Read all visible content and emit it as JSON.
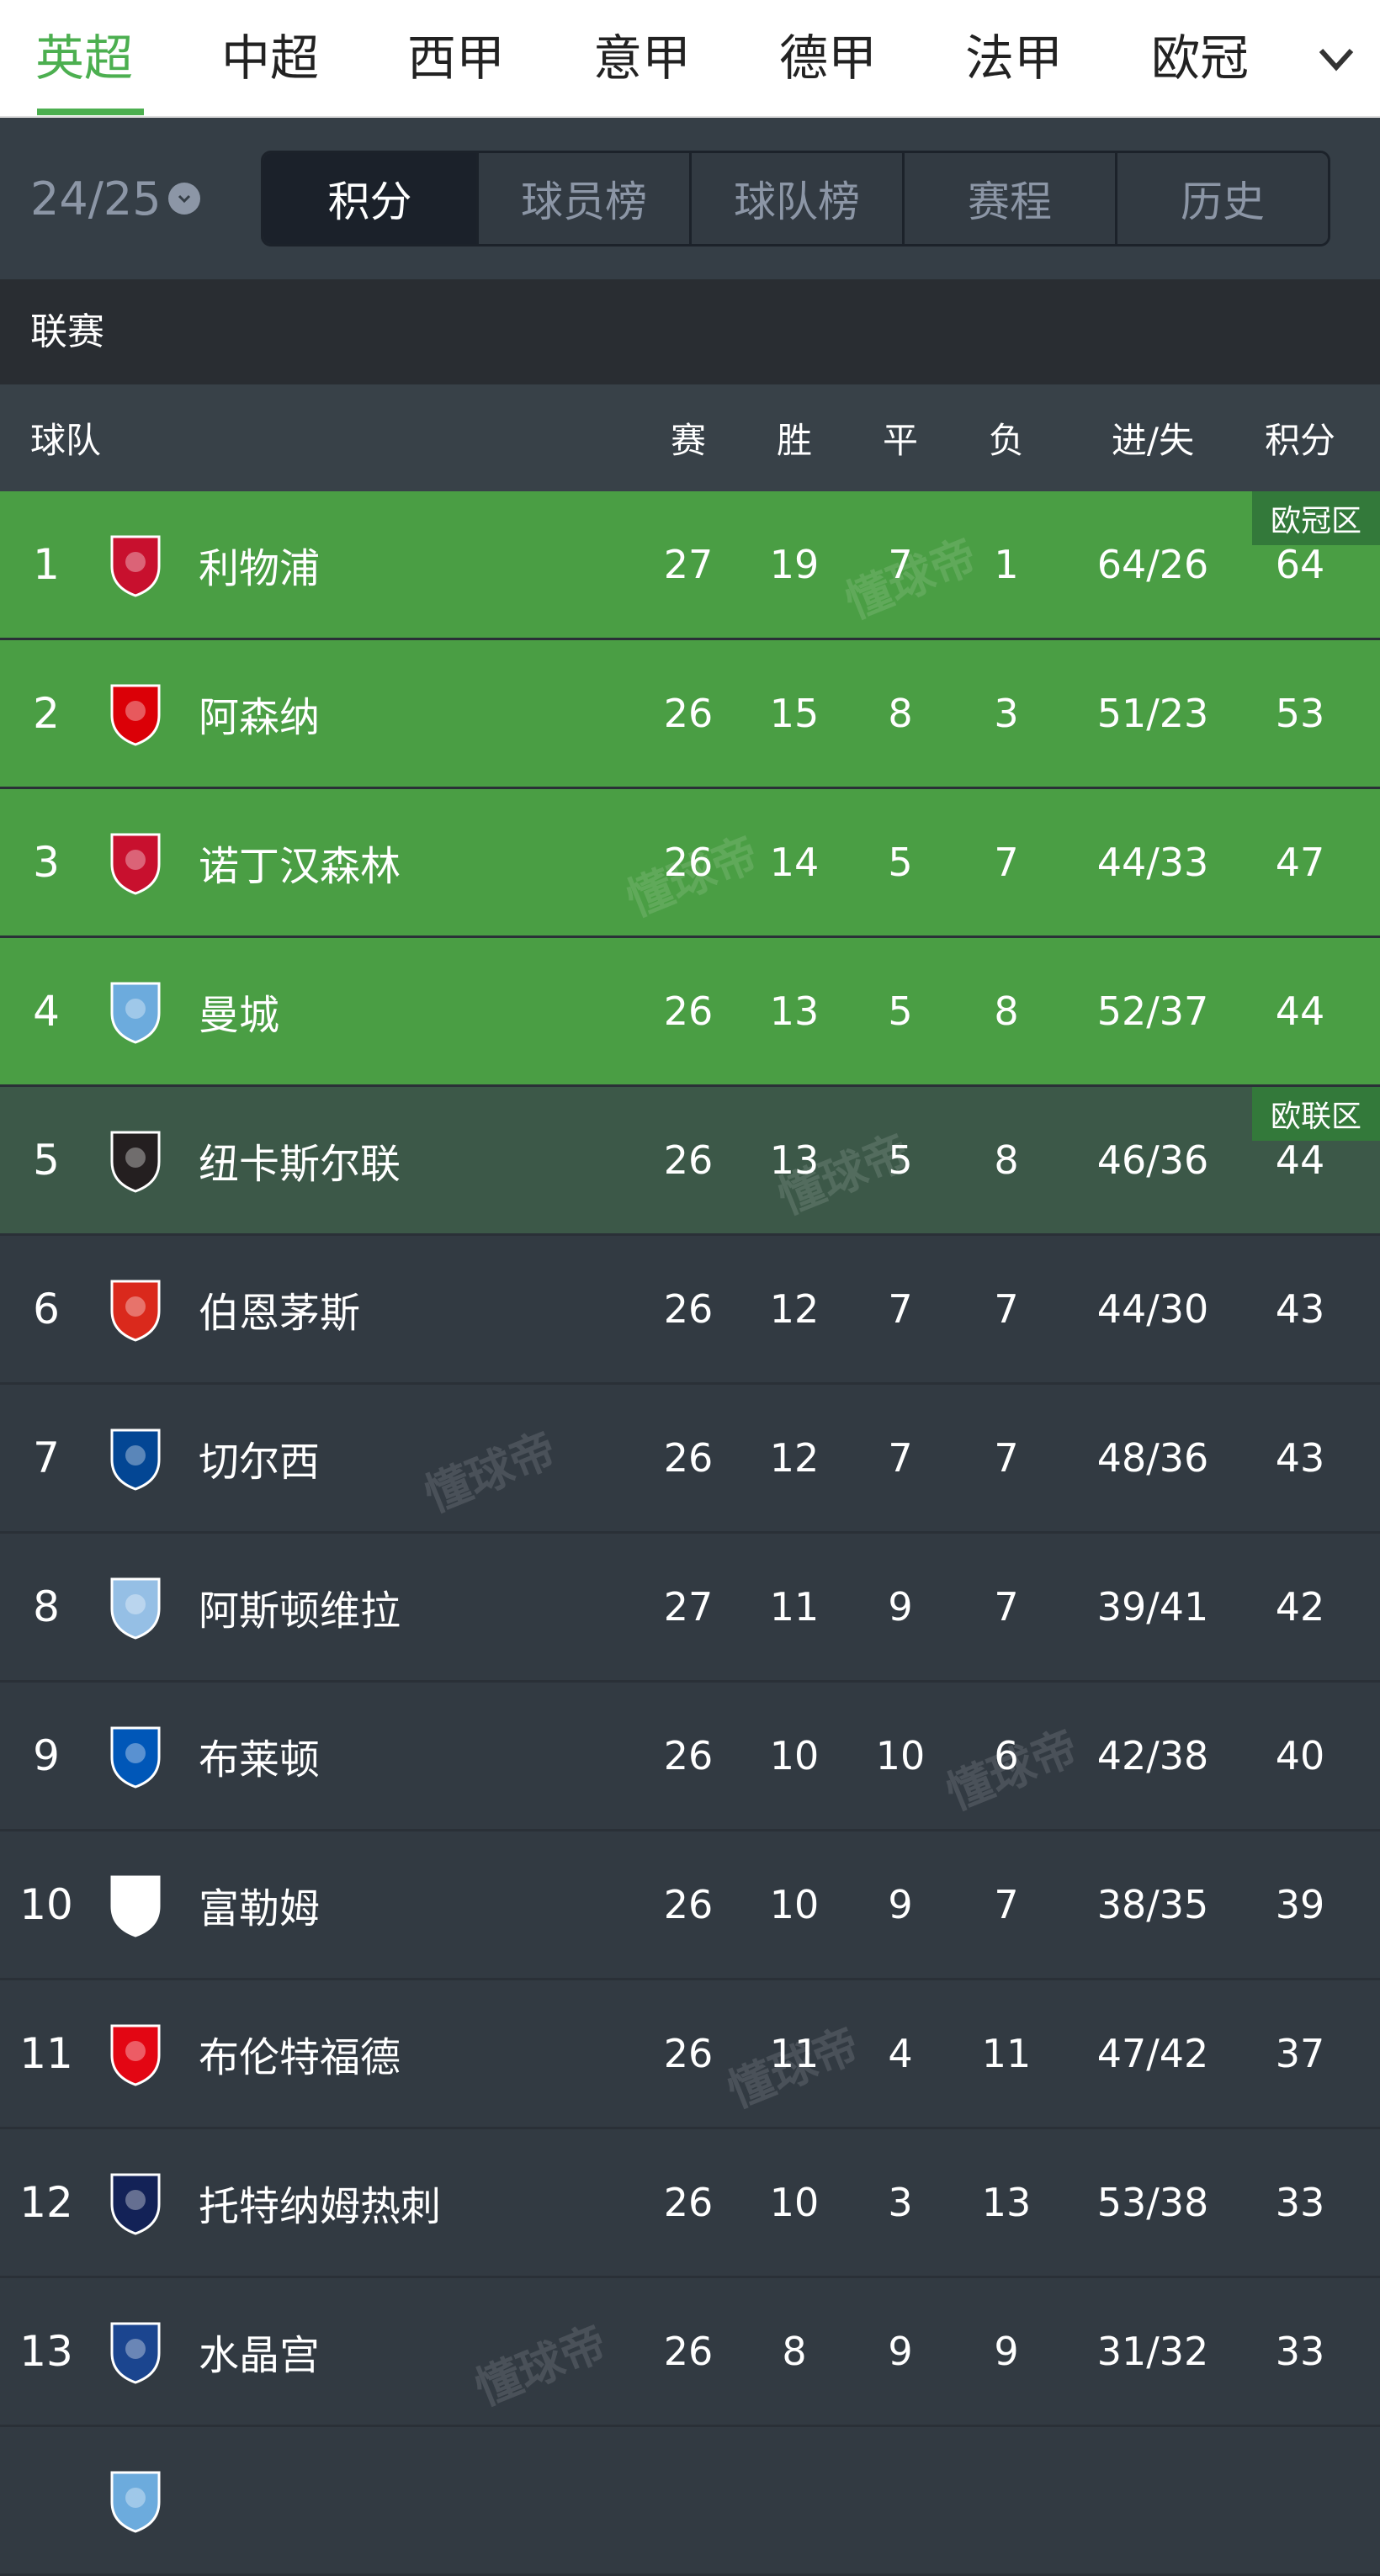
{
  "league_tabs": [
    "英超",
    "中超",
    "西甲",
    "意甲",
    "德甲",
    "法甲",
    "欧冠"
  ],
  "active_league": 0,
  "season": "24/25",
  "sub_tabs": [
    "积分",
    "球员榜",
    "球队榜",
    "赛程",
    "历史"
  ],
  "active_sub_tab": 0,
  "section_title": "联赛",
  "columns": {
    "team": "球队",
    "played": "赛",
    "won": "胜",
    "drawn": "平",
    "lost": "负",
    "goals": "进/失",
    "points": "积分"
  },
  "zones": {
    "ucl": {
      "label": "欧冠区",
      "color": "#4a9e44"
    },
    "uel": {
      "label": "欧联区",
      "color": "#3c5848"
    },
    "default": {
      "color": "#323a42"
    }
  },
  "watermark": "懂球帝",
  "rows": [
    {
      "rank": "1",
      "team": "利物浦",
      "p": "27",
      "w": "19",
      "d": "7",
      "l": "1",
      "g": "64/26",
      "pts": "64",
      "zone": "ucl",
      "badge": "欧冠区",
      "logo": "#c8102e"
    },
    {
      "rank": "2",
      "team": "阿森纳",
      "p": "26",
      "w": "15",
      "d": "8",
      "l": "3",
      "g": "51/23",
      "pts": "53",
      "zone": "ucl",
      "logo": "#db0007"
    },
    {
      "rank": "3",
      "team": "诺丁汉森林",
      "p": "26",
      "w": "14",
      "d": "5",
      "l": "7",
      "g": "44/33",
      "pts": "47",
      "zone": "ucl",
      "logo": "#c8102e"
    },
    {
      "rank": "4",
      "team": "曼城",
      "p": "26",
      "w": "13",
      "d": "5",
      "l": "8",
      "g": "52/37",
      "pts": "44",
      "zone": "ucl",
      "logo": "#6cabdd"
    },
    {
      "rank": "5",
      "team": "纽卡斯尔联",
      "p": "26",
      "w": "13",
      "d": "5",
      "l": "8",
      "g": "46/36",
      "pts": "44",
      "zone": "uel",
      "badge": "欧联区",
      "logo": "#241f20"
    },
    {
      "rank": "6",
      "team": "伯恩茅斯",
      "p": "26",
      "w": "12",
      "d": "7",
      "l": "7",
      "g": "44/30",
      "pts": "43",
      "logo": "#da291c"
    },
    {
      "rank": "7",
      "team": "切尔西",
      "p": "26",
      "w": "12",
      "d": "7",
      "l": "7",
      "g": "48/36",
      "pts": "43",
      "logo": "#034694"
    },
    {
      "rank": "8",
      "team": "阿斯顿维拉",
      "p": "27",
      "w": "11",
      "d": "9",
      "l": "7",
      "g": "39/41",
      "pts": "42",
      "logo": "#95bfe5"
    },
    {
      "rank": "9",
      "team": "布莱顿",
      "p": "26",
      "w": "10",
      "d": "10",
      "l": "6",
      "g": "42/38",
      "pts": "40",
      "logo": "#0057b8"
    },
    {
      "rank": "10",
      "team": "富勒姆",
      "p": "26",
      "w": "10",
      "d": "9",
      "l": "7",
      "g": "38/35",
      "pts": "39",
      "logo": "#ffffff"
    },
    {
      "rank": "11",
      "team": "布伦特福德",
      "p": "26",
      "w": "11",
      "d": "4",
      "l": "11",
      "g": "47/42",
      "pts": "37",
      "logo": "#e30613"
    },
    {
      "rank": "12",
      "team": "托特纳姆热刺",
      "p": "26",
      "w": "10",
      "d": "3",
      "l": "13",
      "g": "53/38",
      "pts": "33",
      "logo": "#132257"
    },
    {
      "rank": "13",
      "team": "水晶宫",
      "p": "26",
      "w": "8",
      "d": "9",
      "l": "9",
      "g": "31/32",
      "pts": "33",
      "logo": "#1b458f"
    },
    {
      "rank": "",
      "team": "",
      "p": "",
      "w": "",
      "d": "",
      "l": "",
      "g": "",
      "pts": "",
      "logo": "#6cabdd"
    }
  ]
}
